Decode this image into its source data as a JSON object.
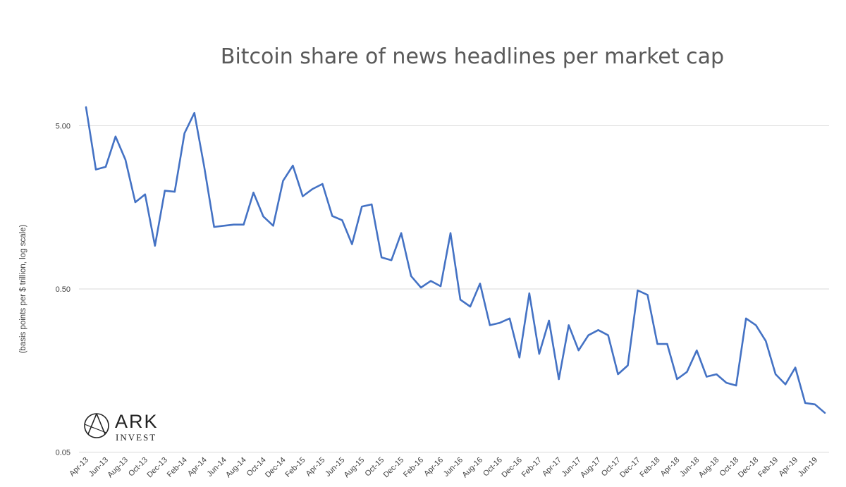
{
  "chart_data": {
    "type": "line",
    "title": "Bitcoin share of news headlines per market cap",
    "ylabel": "(basis points per $ trillion, log scale)",
    "xlabel": "",
    "y_scale": "log",
    "ylim": [
      0.05,
      7
    ],
    "y_ticks": [
      0.05,
      0.5,
      5.0
    ],
    "y_tick_labels": [
      "0.05",
      "0.50",
      "5.00"
    ],
    "grid": true,
    "x": [
      "Apr-13",
      "May-13",
      "Jun-13",
      "Jul-13",
      "Aug-13",
      "Sep-13",
      "Oct-13",
      "Nov-13",
      "Dec-13",
      "Jan-14",
      "Feb-14",
      "Mar-14",
      "Apr-14",
      "May-14",
      "Jun-14",
      "Jul-14",
      "Aug-14",
      "Sep-14",
      "Oct-14",
      "Nov-14",
      "Dec-14",
      "Jan-15",
      "Feb-15",
      "Mar-15",
      "Apr-15",
      "May-15",
      "Jun-15",
      "Jul-15",
      "Aug-15",
      "Sep-15",
      "Oct-15",
      "Nov-15",
      "Dec-15",
      "Jan-16",
      "Feb-16",
      "Mar-16",
      "Apr-16",
      "May-16",
      "Jun-16",
      "Jul-16",
      "Aug-16",
      "Sep-16",
      "Oct-16",
      "Nov-16",
      "Dec-16",
      "Jan-17",
      "Feb-17",
      "Mar-17",
      "Apr-17",
      "May-17",
      "Jun-17",
      "Jul-17",
      "Aug-17",
      "Sep-17",
      "Oct-17",
      "Nov-17",
      "Dec-17",
      "Jan-18",
      "Feb-18",
      "Mar-18",
      "Apr-18",
      "May-18",
      "Jun-18",
      "Jul-18",
      "Aug-18",
      "Sep-18",
      "Oct-18",
      "Nov-18",
      "Dec-18",
      "Jan-19",
      "Feb-19",
      "Mar-19",
      "Apr-19",
      "May-19",
      "Jun-19",
      "Jul-19"
    ],
    "x_tick_labels": [
      "Apr-13",
      "Jun-13",
      "Aug-13",
      "Oct-13",
      "Dec-13",
      "Feb-14",
      "Apr-14",
      "Jun-14",
      "Aug-14",
      "Oct-14",
      "Dec-14",
      "Feb-15",
      "Apr-15",
      "Jun-15",
      "Aug-15",
      "Oct-15",
      "Dec-15",
      "Feb-16",
      "Apr-16",
      "Jun-16",
      "Aug-16",
      "Oct-16",
      "Dec-16",
      "Feb-17",
      "Apr-17",
      "Jun-17",
      "Aug-17",
      "Oct-17",
      "Dec-17",
      "Feb-18",
      "Apr-18",
      "Jun-18",
      "Aug-18",
      "Oct-18",
      "Dec-18",
      "Feb-19",
      "Apr-19",
      "Jun-19"
    ],
    "series": [
      {
        "name": "",
        "color": "#4472c4",
        "values": [
          6.5,
          2.7,
          2.8,
          4.3,
          3.1,
          1.7,
          1.9,
          0.92,
          2.0,
          1.97,
          4.5,
          6.0,
          2.8,
          1.2,
          1.22,
          1.24,
          1.24,
          1.95,
          1.39,
          1.22,
          2.3,
          2.85,
          1.85,
          2.05,
          2.2,
          1.4,
          1.32,
          0.94,
          1.6,
          1.65,
          0.78,
          0.75,
          1.1,
          0.6,
          0.51,
          0.56,
          0.52,
          1.1,
          0.43,
          0.39,
          0.54,
          0.3,
          0.31,
          0.33,
          0.19,
          0.47,
          0.2,
          0.32,
          0.14,
          0.3,
          0.21,
          0.26,
          0.28,
          0.26,
          0.15,
          0.17,
          0.49,
          0.46,
          0.23,
          0.23,
          0.14,
          0.155,
          0.21,
          0.145,
          0.15,
          0.133,
          0.128,
          0.33,
          0.3,
          0.24,
          0.15,
          0.13,
          0.165,
          0.1,
          0.098,
          0.087
        ]
      }
    ]
  },
  "logo": {
    "line1": "ARK",
    "line2": "INVEST"
  }
}
